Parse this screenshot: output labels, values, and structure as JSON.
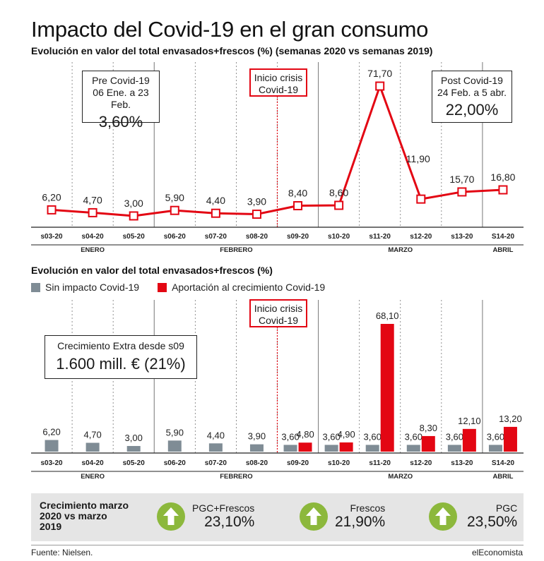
{
  "title": "Impacto del Covid-19 en el gran consumo",
  "subtitle": "Evolución en valor del total envasados+frescos (%) (semanas 2020 vs semanas 2019)",
  "subtitle2": "Evolución en valor del total envasados+frescos (%)",
  "boxes": {
    "pre": {
      "l1": "Pre Covid-19",
      "l2": "06 Ene. a 23 Feb.",
      "big": "3,60%"
    },
    "inicio": {
      "l1": "Inicio crisis",
      "l2": "Covid-19"
    },
    "post": {
      "l1": "Post Covid-19",
      "l2": "24 Feb. a 5 abr.",
      "big": "22,00%"
    },
    "inicio2": {
      "l1": "Inicio crisis",
      "l2": "Covid-19"
    },
    "extra": {
      "l1": "Crecimiento Extra desde s09",
      "big": "1.600 mill. € (21%)"
    }
  },
  "legend": {
    "gray": "Sin impacto Covid-19",
    "red": "Aportación al crecimiento Covid-19"
  },
  "colors": {
    "red": "#e30613",
    "gray": "#7f8c95",
    "green": "#8cb83c",
    "panel": "#e5e5e5"
  },
  "months": [
    {
      "label": "ENERO",
      "weeks": [
        "s03-20",
        "s04-20",
        "s05-20"
      ]
    },
    {
      "label": "FEBRERO",
      "weeks": [
        "s06-20",
        "s07-20",
        "s08-20",
        "s09-20"
      ]
    },
    {
      "label": "MARZO",
      "weeks": [
        "s10-20",
        "s11-20",
        "s12-20",
        "s13-20"
      ]
    },
    {
      "label": "ABRIL",
      "weeks": [
        "S14-20"
      ]
    }
  ],
  "chart_data": [
    {
      "type": "line",
      "categories": [
        "s03-20",
        "s04-20",
        "s05-20",
        "s06-20",
        "s07-20",
        "s08-20",
        "s09-20",
        "s10-20",
        "s11-20",
        "s12-20",
        "s13-20",
        "S14-20"
      ],
      "values": [
        6.2,
        4.7,
        3.0,
        5.9,
        4.4,
        3.9,
        8.4,
        8.6,
        71.7,
        11.9,
        15.7,
        16.8
      ],
      "value_labels": [
        "6,20",
        "4,70",
        "3,00",
        "5,90",
        "4,40",
        "3,90",
        "8,40",
        "8,60",
        "71,70",
        "11,90",
        "15,70",
        "16,80"
      ],
      "color": "#e30613"
    },
    {
      "type": "bar",
      "categories": [
        "s03-20",
        "s04-20",
        "s05-20",
        "s06-20",
        "s07-20",
        "s08-20",
        "s09-20",
        "s10-20",
        "s11-20",
        "s12-20",
        "s13-20",
        "S14-20"
      ],
      "series": [
        {
          "name": "Sin impacto Covid-19",
          "color": "#7f8c95",
          "values": [
            6.2,
            4.7,
            3.0,
            5.9,
            4.4,
            3.9,
            3.6,
            3.6,
            3.6,
            3.6,
            3.6,
            3.6
          ],
          "value_labels": [
            "6,20",
            "4,70",
            "3,00",
            "5,90",
            "4,40",
            "3,90",
            "3,60",
            "3,60",
            "3,60",
            "3,60",
            "3,60",
            "3,60"
          ]
        },
        {
          "name": "Aportación al crecimiento Covid-19",
          "color": "#e30613",
          "values": [
            null,
            null,
            null,
            null,
            null,
            null,
            4.8,
            4.9,
            68.1,
            8.3,
            12.1,
            13.2
          ],
          "value_labels": [
            "",
            "",
            "",
            "",
            "",
            "",
            "4,80",
            "4,90",
            "68,10",
            "8,30",
            "12,10",
            "13,20"
          ]
        }
      ]
    }
  ],
  "summary": {
    "label": "Crecimiento marzo 2020 vs marzo 2019",
    "kpis": [
      {
        "name": "PGC+Frescos",
        "value": "23,10%"
      },
      {
        "name": "Frescos",
        "value": "21,90%"
      },
      {
        "name": "PGC",
        "value": "23,50%"
      }
    ]
  },
  "footer": {
    "source": "Fuente: Nielsen.",
    "brand": "elEconomista"
  }
}
